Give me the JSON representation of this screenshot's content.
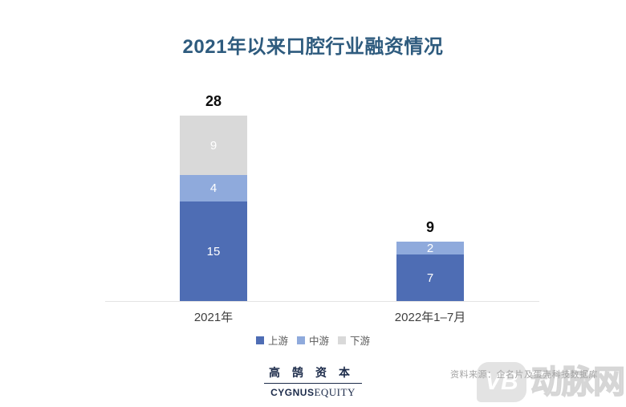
{
  "title": {
    "text": "2021年以来口腔行业融资情况",
    "color": "#2e5b7e"
  },
  "chart_data": {
    "type": "bar",
    "stacked": true,
    "title": "2021年以来口腔行业融资情况",
    "categories": [
      "2021年",
      "2022年1–7月"
    ],
    "series": [
      {
        "name": "上游",
        "values": [
          15,
          7
        ],
        "color": "#4e6db4"
      },
      {
        "name": "中游",
        "values": [
          4,
          2
        ],
        "color": "#8faadc"
      },
      {
        "name": "下游",
        "values": [
          9,
          0
        ],
        "color": "#d9d9d9"
      }
    ],
    "totals": [
      28,
      9
    ],
    "ylim": [
      0,
      28
    ],
    "grid": false,
    "legend_position": "bottom",
    "axis_line_color": "#e3e3e3",
    "segment_label_color": "#ffffff",
    "total_label_color": "#0d0d0d"
  },
  "footer": {
    "logo_cn": "高鹄资本",
    "logo_en_bold": "CYGNUS",
    "logo_en_serif": "EQUITY",
    "logo_color": "#1c2b4a"
  },
  "watermark": {
    "blob_text": "VB",
    "brand": "动脉网",
    "source_note": "资料来源：企名片及蛋壳科技数据库"
  }
}
